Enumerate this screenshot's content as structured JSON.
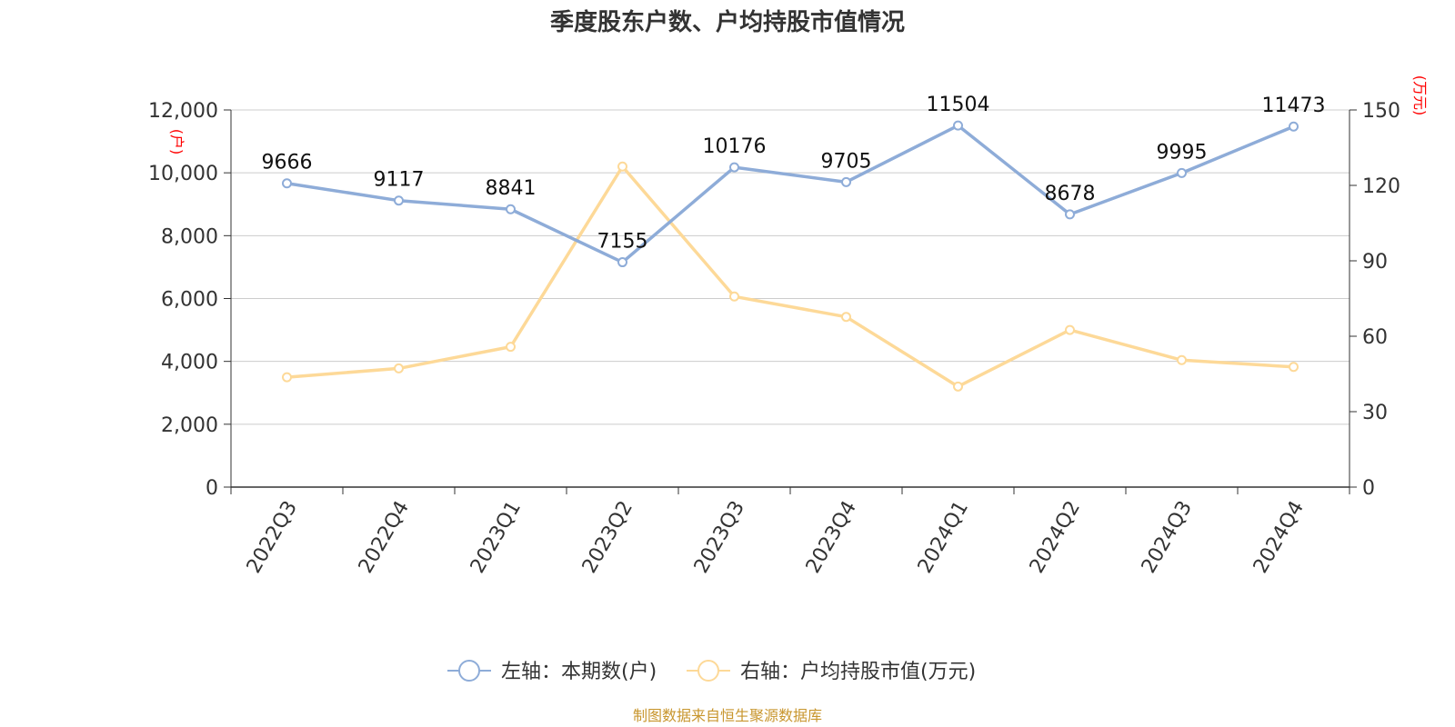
{
  "chart_data": {
    "type": "line",
    "title": "季度股东户数、户均持股市值情况",
    "categories": [
      "2022Q3",
      "2022Q4",
      "2023Q1",
      "2023Q2",
      "2023Q3",
      "2023Q4",
      "2024Q1",
      "2024Q2",
      "2024Q3",
      "2024Q4"
    ],
    "series": [
      {
        "name": "左轴：本期数(户)",
        "axis": "left",
        "color": "#8eacd8",
        "values": [
          9666,
          9117,
          8841,
          7155,
          10176,
          9705,
          11504,
          8678,
          9995,
          11473
        ],
        "show_labels": true
      },
      {
        "name": "右轴：户均持股市值(万元)",
        "axis": "right",
        "color": "#fdd998",
        "values": [
          43.7,
          47.2,
          55.8,
          127.5,
          75.8,
          67.7,
          40.0,
          62.5,
          50.5,
          47.8
        ],
        "show_labels": false
      }
    ],
    "y_left": {
      "unit": "(户)",
      "min": 0,
      "max": 12000,
      "ticks": [
        "0",
        "2,000",
        "4,000",
        "6,000",
        "8,000",
        "10,000",
        "12,000"
      ]
    },
    "y_right": {
      "unit": "(万元)",
      "min": 0,
      "max": 150,
      "ticks": [
        "0",
        "30",
        "60",
        "90",
        "120",
        "150"
      ]
    },
    "grid": true,
    "legend_position": "bottom-center",
    "source": "制图数据来自恒生聚源数据库"
  }
}
